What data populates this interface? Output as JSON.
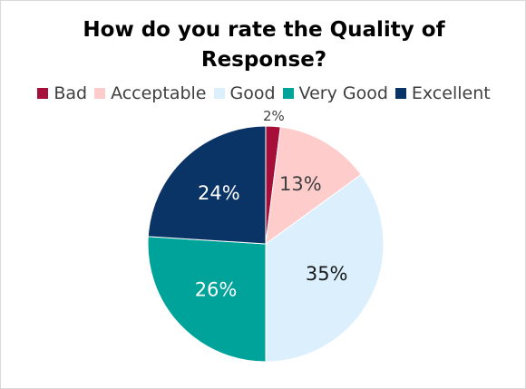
{
  "chart_data": {
    "type": "pie",
    "title": "How do you rate the Quality of Response?",
    "title_lines": [
      "How do you rate the Quality of",
      "Response?"
    ],
    "categories": [
      "Bad",
      "Acceptable",
      "Good",
      "Very Good",
      "Excellent"
    ],
    "values": [
      2,
      13,
      35,
      26,
      24
    ],
    "labels": [
      "2%",
      "13%",
      "35%",
      "26%",
      "24%"
    ],
    "colors": [
      "#a50f3a",
      "#ffcccc",
      "#dbeffd",
      "#00a39a",
      "#0a3366"
    ],
    "label_colors": [
      "#404040",
      "#404040",
      "#1a1a1a",
      "#ffffff",
      "#ffffff"
    ],
    "legend_position": "top"
  }
}
